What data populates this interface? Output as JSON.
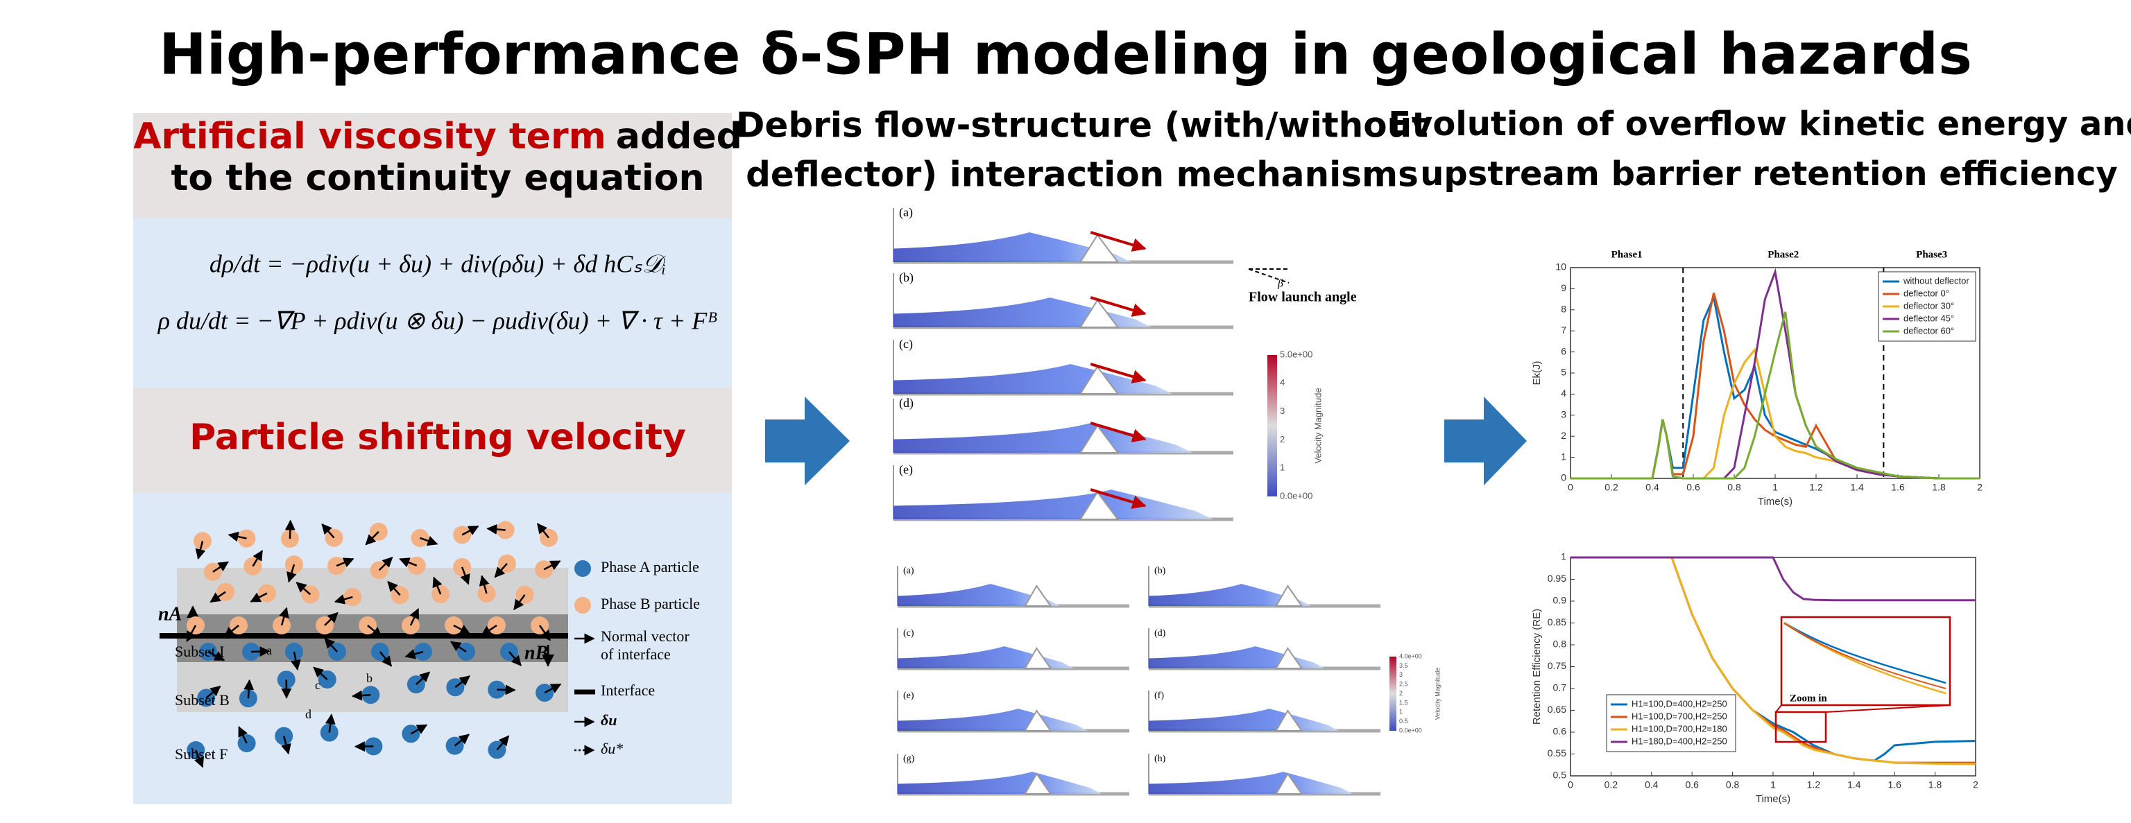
{
  "title": "High-performance δ-SPH modeling in geological hazards",
  "left": {
    "box1": {
      "highlight": "Artificial viscosity term",
      "rest": "added",
      "line2": "to the continuity equation"
    },
    "equations": [
      "dρ/dt = −ρdiv(u + δu) + div(ρδu) + δd hCₛ𝒟ᵢ",
      "ρ du/dt = −∇P + ρdiv(u ⊗ δu) − ρudiv(δu) + ∇ · τ + Fᴮ"
    ],
    "box2": {
      "title": "Particle shifting velocity"
    },
    "diagram": {
      "legend": [
        "Phase A particle",
        "Phase B particle",
        "Normal vector",
        "of interface",
        "Interface",
        "δu",
        "δu*"
      ],
      "subsets": [
        "Subset I",
        "Subset B",
        "Subset F"
      ],
      "normals": [
        "nA",
        "nB"
      ],
      "points": [
        "a",
        "b",
        "c",
        "d"
      ]
    }
  },
  "middle": {
    "heading": [
      "Debris flow-structure (with/without",
      "deflector) interaction mechanisms"
    ],
    "top": {
      "labels": [
        "(a)",
        "(b)",
        "(c)",
        "(d)",
        "(e)"
      ],
      "annotation": "Flow launch angle",
      "angle": "β",
      "colorbar_title": "Velocity Magnitude",
      "colorbar_ticks": [
        "5.0e+00",
        "4",
        "3",
        "2",
        "1",
        "0.0e+00"
      ]
    },
    "bottom": {
      "labels": [
        "(a)",
        "(b)",
        "(c)",
        "(d)",
        "(e)",
        "(f)",
        "(g)",
        "(h)"
      ],
      "colorbar_title": "Velocity Magnitude",
      "colorbar_ticks": [
        "4.0e+00",
        "3.5",
        "3",
        "2.5",
        "2",
        "1.5",
        "1",
        "0.5",
        "0.0e+00"
      ]
    }
  },
  "right": {
    "heading": [
      "Evolution of overflow kinetic energy and",
      "upstream barrier retention efficiency"
    ]
  },
  "chart_data": [
    {
      "type": "line",
      "xlabel": "Time(s)",
      "ylabel": "Ek(J)",
      "x": [
        0,
        0.4,
        0.43,
        0.45,
        0.47,
        0.5,
        0.55,
        0.6,
        0.65,
        0.7,
        0.75,
        0.8,
        0.85,
        0.9,
        0.95,
        1.0,
        1.05,
        1.1,
        1.15,
        1.2,
        1.3,
        1.4,
        1.5,
        1.6,
        1.8,
        2.0
      ],
      "series": [
        {
          "name": "without deflector",
          "color": "#0072bd",
          "values": [
            0,
            0,
            1.5,
            2.8,
            2,
            0.5,
            0.5,
            4,
            7.5,
            8.6,
            6,
            3.8,
            4.2,
            5.3,
            3,
            2.2,
            2,
            1.8,
            1.6,
            1.4,
            0.9,
            0.5,
            0.2,
            0.1,
            0,
            0
          ]
        },
        {
          "name": "deflector 0°",
          "color": "#d95319",
          "values": [
            0,
            0,
            1.5,
            2.8,
            2,
            0.2,
            0.2,
            2,
            6.5,
            8.8,
            7,
            4.5,
            3.5,
            2.8,
            2.3,
            2,
            1.8,
            1.6,
            1.5,
            2.5,
            0.8,
            0.4,
            0.2,
            0.1,
            0,
            0
          ]
        },
        {
          "name": "deflector 30°",
          "color": "#edb120",
          "values": [
            0,
            0,
            1.5,
            2.8,
            2,
            0.1,
            0,
            0,
            0,
            0.5,
            3,
            4.5,
            5.5,
            6.1,
            4,
            2,
            1.5,
            1.3,
            1.2,
            1,
            0.8,
            0.5,
            0.3,
            0.1,
            0,
            0
          ]
        },
        {
          "name": "deflector 45°",
          "color": "#7e2f8e",
          "values": [
            0,
            0,
            1.5,
            2.8,
            2,
            0.1,
            0,
            0,
            0,
            0,
            0,
            0.5,
            3,
            5.5,
            8.5,
            9.8,
            7,
            4,
            2.5,
            1.5,
            0.8,
            0.4,
            0.2,
            0.1,
            0,
            0
          ]
        },
        {
          "name": "deflector 60°",
          "color": "#77ac30",
          "values": [
            0,
            0,
            1.5,
            2.8,
            2,
            0.1,
            0,
            0,
            0,
            0,
            0,
            0,
            0.5,
            2,
            4,
            6,
            7.9,
            4,
            2.5,
            1.5,
            0.9,
            0.5,
            0.3,
            0.1,
            0,
            0
          ]
        }
      ],
      "xlim": [
        0,
        2
      ],
      "ylim": [
        0,
        10
      ],
      "xticks": [
        0,
        0.2,
        0.4,
        0.6,
        0.8,
        1,
        1.2,
        1.4,
        1.6,
        1.8,
        2
      ],
      "yticks": [
        0,
        1,
        2,
        3,
        4,
        5,
        6,
        7,
        8,
        9,
        10
      ],
      "legend": "upper right",
      "phases": {
        "labels": [
          "Phase1",
          "Phase2",
          "Phase3"
        ],
        "boundaries": [
          0.55,
          1.53
        ]
      }
    },
    {
      "type": "line",
      "xlabel": "Time(s)",
      "ylabel": "Retention Efficiency (RE)",
      "x": [
        0,
        0.5,
        0.6,
        0.7,
        0.8,
        0.9,
        1.0,
        1.05,
        1.1,
        1.15,
        1.2,
        1.3,
        1.4,
        1.5,
        1.55,
        1.6,
        1.8,
        2.0
      ],
      "series": [
        {
          "name": "H1=100,D=400,H2=250",
          "color": "#0072bd",
          "values": [
            1,
            1,
            0.87,
            0.77,
            0.7,
            0.65,
            0.62,
            0.61,
            0.6,
            0.585,
            0.57,
            0.55,
            0.54,
            0.535,
            0.55,
            0.57,
            0.578,
            0.58
          ]
        },
        {
          "name": "H1=100,D=700,H2=250",
          "color": "#d95319",
          "values": [
            1,
            1,
            0.87,
            0.77,
            0.7,
            0.65,
            0.615,
            0.605,
            0.59,
            0.575,
            0.565,
            0.55,
            0.54,
            0.535,
            0.533,
            0.53,
            0.53,
            0.53
          ]
        },
        {
          "name": "H1=100,D=700,H2=180",
          "color": "#edb120",
          "values": [
            1,
            1,
            0.87,
            0.77,
            0.7,
            0.65,
            0.61,
            0.6,
            0.585,
            0.57,
            0.56,
            0.55,
            0.54,
            0.535,
            0.533,
            0.53,
            0.528,
            0.527
          ]
        },
        {
          "name": "H1=180,D=400,H2=250",
          "color": "#7e2f8e",
          "values": [
            1,
            1,
            1,
            1,
            1,
            1,
            1,
            0.95,
            0.92,
            0.905,
            0.903,
            0.902,
            0.902,
            0.902,
            0.902,
            0.902,
            0.902,
            0.902
          ]
        }
      ],
      "xlim": [
        0,
        2
      ],
      "ylim": [
        0.5,
        1
      ],
      "xticks": [
        0,
        0.2,
        0.4,
        0.6,
        0.8,
        1,
        1.2,
        1.4,
        1.6,
        1.8,
        2
      ],
      "yticks": [
        0.5,
        0.55,
        0.6,
        0.65,
        0.7,
        0.75,
        0.8,
        0.85,
        0.9,
        0.95,
        1
      ],
      "legend": "lower left",
      "annotation": "Zoom in"
    }
  ]
}
